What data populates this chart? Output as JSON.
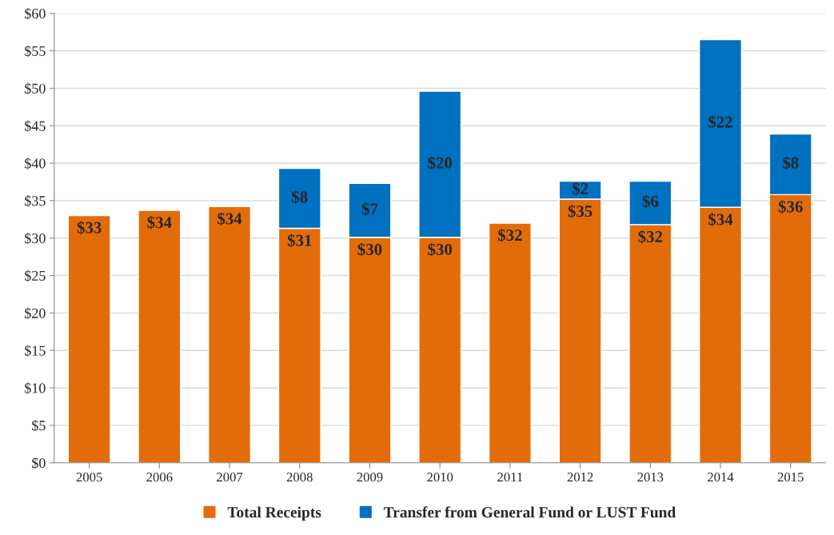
{
  "chart_data": {
    "type": "bar",
    "stacked": true,
    "categories": [
      "2005",
      "2006",
      "2007",
      "2008",
      "2009",
      "2010",
      "2011",
      "2012",
      "2013",
      "2014",
      "2015"
    ],
    "series": [
      {
        "name": "Total Receipts",
        "color": "#e36c0a",
        "values": [
          33.0,
          33.7,
          34.2,
          31.3,
          30.1,
          30.1,
          32.0,
          35.2,
          31.8,
          34.1,
          35.8
        ],
        "value_labels": [
          "$33",
          "$34",
          "$34",
          "$31",
          "$30",
          "$30",
          "$32",
          "$35",
          "$32",
          "$34",
          "$36"
        ]
      },
      {
        "name": "Transfer from General Fund or LUST Fund",
        "color": "#0070c0",
        "values": [
          null,
          null,
          null,
          8.0,
          7.2,
          19.5,
          null,
          2.4,
          5.8,
          22.4,
          8.1
        ],
        "value_labels": [
          null,
          null,
          null,
          "$8",
          "$7",
          "$20",
          null,
          "$2",
          "$6",
          "$22",
          "$8"
        ]
      }
    ],
    "ylim": [
      0,
      60
    ],
    "yticks": [
      {
        "value": 0,
        "label": "$0"
      },
      {
        "value": 5,
        "label": "$5"
      },
      {
        "value": 10,
        "label": "$10"
      },
      {
        "value": 15,
        "label": "$15"
      },
      {
        "value": 20,
        "label": "$20"
      },
      {
        "value": 25,
        "label": "$25"
      },
      {
        "value": 30,
        "label": "$30"
      },
      {
        "value": 35,
        "label": "$35"
      },
      {
        "value": 40,
        "label": "$40"
      },
      {
        "value": 45,
        "label": "$45"
      },
      {
        "value": 50,
        "label": "$50"
      },
      {
        "value": 55,
        "label": "$55"
      },
      {
        "value": 60,
        "label": "$60"
      }
    ],
    "grid": "y",
    "legend": "bottom"
  }
}
